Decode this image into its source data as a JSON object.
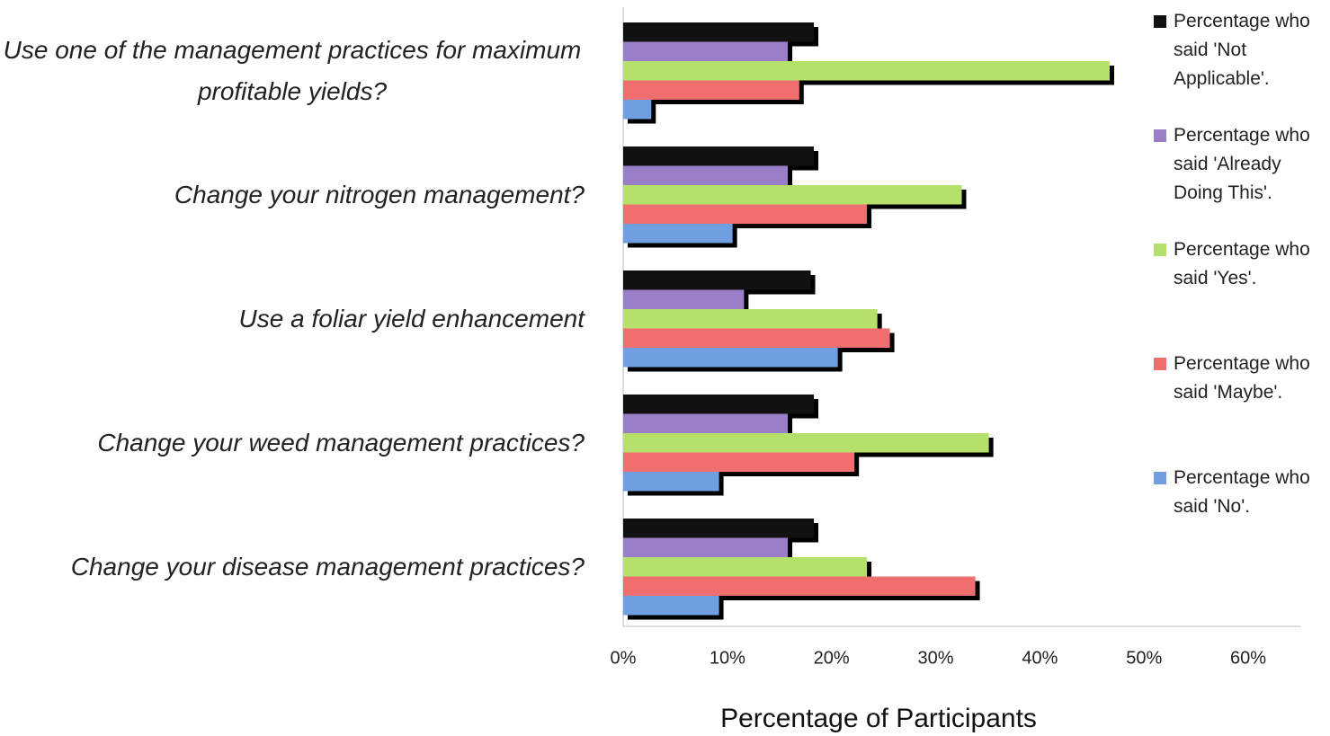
{
  "chart_data": {
    "type": "barh",
    "categories": [
      "Use one of the management practices for maximum profitable yields?",
      "Change your nitrogen management?",
      "Use a foliar yield enhancement",
      "Change your weed management practices?",
      "Change your disease management practices?"
    ],
    "series": [
      {
        "name": "Percentage who said 'Not Applicable'.",
        "color": "#111111",
        "values": [
          18.3,
          18.3,
          18.0,
          18.3,
          18.3
        ]
      },
      {
        "name": "Percentage who said 'Already Doing This'.",
        "color": "#9a7fc8",
        "values": [
          15.8,
          15.8,
          11.6,
          15.8,
          15.8
        ]
      },
      {
        "name": "Percentage who said 'Yes'.",
        "color": "#b5e06a",
        "values": [
          46.7,
          32.5,
          24.4,
          35.1,
          23.4
        ]
      },
      {
        "name": "Percentage who said 'Maybe'.",
        "color": "#ef6f6f",
        "values": [
          16.9,
          23.4,
          25.6,
          22.2,
          33.8
        ]
      },
      {
        "name": "Percentage who said 'No'.",
        "color": "#6f9fe0",
        "values": [
          2.7,
          10.5,
          20.6,
          9.2,
          9.2
        ]
      }
    ],
    "xlabel": "Percentage of Participants",
    "xlim": [
      0,
      65
    ],
    "xticks": [
      {
        "value": 0,
        "label": "0%"
      },
      {
        "value": 10,
        "label": "10%"
      },
      {
        "value": 20,
        "label": "20%"
      },
      {
        "value": 30,
        "label": "30%"
      },
      {
        "value": 40,
        "label": "40%"
      },
      {
        "value": 50,
        "label": "50%"
      },
      {
        "value": 60,
        "label": "60%"
      }
    ],
    "legend": "right",
    "bar_shadow": true
  }
}
